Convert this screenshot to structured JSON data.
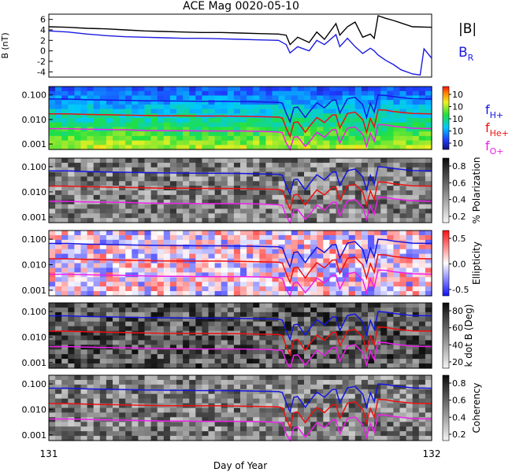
{
  "title": "ACE Mag 0020-05-10",
  "xlabel": "Day of Year",
  "x_ticks": [
    "131",
    "132"
  ],
  "colors": {
    "field_total": "#000000",
    "field_radial": "#1a1adf",
    "f_h": "#1515e0",
    "f_he": "#ee1010",
    "f_o": "#ee20ee"
  },
  "chart_data": [
    {
      "type": "line",
      "panel": "field",
      "ylabel": "B (nT)",
      "ylim": [
        -5,
        7
      ],
      "yticks": [
        "6",
        "4",
        "2",
        "0",
        "-2",
        "-4"
      ],
      "legend": {
        "placement": "right",
        "entries": [
          "|B|",
          "BR"
        ]
      },
      "series": [
        {
          "name": "|B|",
          "x": [
            131.0,
            131.05,
            131.1,
            131.15,
            131.2,
            131.25,
            131.3,
            131.35,
            131.4,
            131.45,
            131.5,
            131.55,
            131.6,
            131.62,
            131.63,
            131.65,
            131.68,
            131.7,
            131.72,
            131.75,
            131.76,
            131.78,
            131.8,
            131.82,
            131.84,
            131.85,
            131.86,
            131.88,
            131.9,
            131.95,
            132.0
          ],
          "values": [
            4.6,
            4.5,
            4.3,
            4.2,
            4.0,
            3.8,
            3.7,
            3.6,
            3.5,
            3.5,
            3.4,
            3.3,
            3.2,
            3.0,
            1.2,
            2.6,
            1.6,
            3.6,
            2.2,
            5.2,
            3.0,
            4.6,
            5.5,
            2.6,
            3.2,
            2.4,
            6.7,
            6.2,
            5.8,
            4.6,
            4.5
          ]
        },
        {
          "name": "BR",
          "x": [
            131.0,
            131.05,
            131.1,
            131.15,
            131.2,
            131.25,
            131.3,
            131.35,
            131.4,
            131.45,
            131.5,
            131.55,
            131.6,
            131.62,
            131.63,
            131.65,
            131.68,
            131.7,
            131.72,
            131.75,
            131.76,
            131.78,
            131.8,
            131.82,
            131.84,
            131.85,
            131.86,
            131.88,
            131.9,
            131.92,
            131.95,
            131.97,
            131.98,
            132.0
          ],
          "values": [
            3.8,
            3.6,
            3.2,
            2.9,
            2.7,
            2.6,
            2.5,
            2.4,
            2.4,
            2.3,
            2.2,
            2.1,
            2.0,
            1.2,
            -0.4,
            0.8,
            0.0,
            2.0,
            1.2,
            3.1,
            0.8,
            2.4,
            0.8,
            -0.5,
            0.5,
            0.0,
            -0.8,
            -1.8,
            -2.6,
            -3.6,
            -4.4,
            -4.6,
            0.4,
            -1.4
          ]
        }
      ]
    },
    {
      "type": "heatmap",
      "panel": "power",
      "ylabel": "",
      "yscale": "log",
      "yticks": [
        "0.100",
        "0.010",
        "0.001"
      ],
      "colorbar": {
        "ticks": [
          "10",
          "10",
          "10",
          "10",
          "10"
        ]
      },
      "lines": [
        "fH+",
        "fHe+",
        "fO+"
      ],
      "legend": {
        "placement": "right",
        "entries": [
          "fH+",
          "fHe+",
          "fO+"
        ]
      }
    },
    {
      "type": "heatmap",
      "panel": "polarization",
      "ylabel": "% Polarization",
      "yscale": "log",
      "yticks": [
        "0.100",
        "0.010",
        "0.001"
      ],
      "colorbar": {
        "ticks": [
          "0.8",
          "0.6",
          "0.4",
          "0.2"
        ]
      },
      "lines": [
        "fH+",
        "fHe+",
        "fO+"
      ]
    },
    {
      "type": "heatmap",
      "panel": "ellipticity",
      "ylabel": "Ellipticity",
      "yscale": "log",
      "yticks": [
        "0.100",
        "0.010",
        "0.001"
      ],
      "colorbar": {
        "ticks": [
          "0.5",
          "0.0",
          "-0.5"
        ]
      },
      "lines": [
        "fH+",
        "fHe+",
        "fO+"
      ]
    },
    {
      "type": "heatmap",
      "panel": "kdotb",
      "ylabel": "k dot B (Deg)",
      "yscale": "log",
      "yticks": [
        "0.100",
        "0.010",
        "0.001"
      ],
      "colorbar": {
        "ticks": [
          "80",
          "60",
          "40",
          "20"
        ]
      },
      "lines": [
        "fH+",
        "fHe+",
        "fO+"
      ]
    },
    {
      "type": "heatmap",
      "panel": "coherency",
      "ylabel": "Coherency",
      "yscale": "log",
      "yticks": [
        "0.100",
        "0.010",
        "0.001"
      ],
      "colorbar": {
        "ticks": [
          "0.8",
          "0.6",
          "0.4",
          "0.2"
        ]
      },
      "lines": [
        "fH+",
        "fHe+",
        "fO+"
      ]
    }
  ],
  "gyro_lines": {
    "x": [
      131.0,
      131.05,
      131.1,
      131.15,
      131.2,
      131.25,
      131.3,
      131.35,
      131.4,
      131.45,
      131.5,
      131.55,
      131.6,
      131.61,
      131.62,
      131.63,
      131.64,
      131.65,
      131.67,
      131.68,
      131.7,
      131.72,
      131.74,
      131.75,
      131.76,
      131.78,
      131.8,
      131.82,
      131.83,
      131.84,
      131.85,
      131.86,
      131.88,
      131.9,
      131.95,
      132.0
    ],
    "fH": [
      0.068,
      0.068,
      0.064,
      0.062,
      0.06,
      0.058,
      0.057,
      0.056,
      0.055,
      0.055,
      0.054,
      0.052,
      0.05,
      0.046,
      0.018,
      0.008,
      0.03,
      0.032,
      0.012,
      0.02,
      0.048,
      0.03,
      0.06,
      0.062,
      0.018,
      0.07,
      0.08,
      0.04,
      0.012,
      0.045,
      0.02,
      0.1,
      0.095,
      0.085,
      0.07,
      0.068
    ],
    "fHe": [
      0.017,
      0.017,
      0.016,
      0.0155,
      0.015,
      0.0145,
      0.014,
      0.014,
      0.0138,
      0.0138,
      0.0135,
      0.013,
      0.0125,
      0.0115,
      0.0045,
      0.002,
      0.0075,
      0.008,
      0.003,
      0.005,
      0.012,
      0.0075,
      0.015,
      0.0155,
      0.0045,
      0.0175,
      0.02,
      0.01,
      0.003,
      0.011,
      0.005,
      0.025,
      0.024,
      0.021,
      0.0175,
      0.017
    ],
    "fO": [
      0.0042,
      0.0042,
      0.004,
      0.0039,
      0.0038,
      0.0036,
      0.0035,
      0.0035,
      0.0034,
      0.0034,
      0.0034,
      0.0033,
      0.0031,
      0.0029,
      0.0011,
      0.0006,
      0.0019,
      0.002,
      0.0008,
      0.0012,
      0.003,
      0.0019,
      0.0038,
      0.0039,
      0.0011,
      0.0044,
      0.005,
      0.0025,
      0.0008,
      0.0028,
      0.0013,
      0.0062,
      0.006,
      0.0053,
      0.0044,
      0.0042
    ]
  }
}
